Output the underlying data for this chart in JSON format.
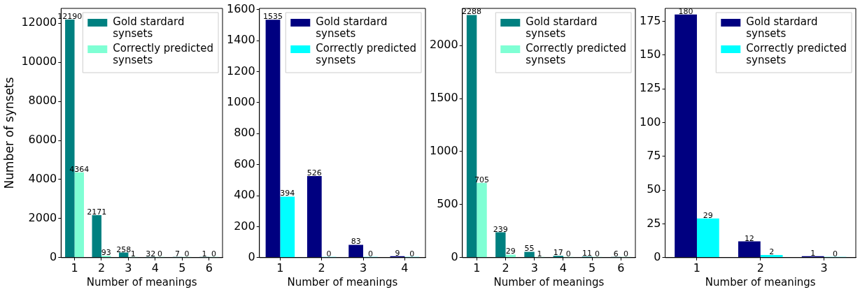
{
  "chart_data": [
    {
      "type": "bar",
      "xlabel": "Number of meanings",
      "ylabel": "Number of synsets",
      "categories": [
        "1",
        "2",
        "3",
        "4",
        "5",
        "6"
      ],
      "series": [
        {
          "name": "Gold stardard synsets",
          "color": "#008080",
          "values": [
            12190,
            2171,
            258,
            32,
            7,
            1
          ]
        },
        {
          "name": "Correctly predicted synsets",
          "color": "#7fffd4",
          "values": [
            4364,
            93,
            1,
            0,
            0,
            0
          ]
        }
      ],
      "ylim": [
        0,
        12760
      ],
      "yticks": [
        0,
        2000,
        4000,
        6000,
        8000,
        10000,
        12000
      ],
      "data_labels": true,
      "legend": "top right"
    },
    {
      "type": "bar",
      "xlabel": "Number of meanings",
      "categories": [
        "1",
        "2",
        "3",
        "4"
      ],
      "series": [
        {
          "name": "Gold stardard synsets",
          "color": "#000080",
          "values": [
            1535,
            526,
            83,
            9
          ]
        },
        {
          "name": "Correctly predicted synsets",
          "color": "#00ffff",
          "values": [
            394,
            0,
            0,
            0
          ]
        }
      ],
      "ylim": [
        0,
        1608
      ],
      "yticks": [
        0,
        200,
        400,
        600,
        800,
        1000,
        1200,
        1400,
        1600
      ],
      "data_labels": true,
      "legend": "top right"
    },
    {
      "type": "bar",
      "xlabel": "Number of meanings",
      "categories": [
        "1",
        "2",
        "3",
        "4",
        "5",
        "6"
      ],
      "series": [
        {
          "name": "Gold stardard synsets",
          "color": "#008080",
          "values": [
            2288,
            239,
            55,
            17,
            11,
            6
          ]
        },
        {
          "name": "Correctly predicted synsets",
          "color": "#7fffd4",
          "values": [
            705,
            29,
            1,
            0,
            0,
            0
          ]
        }
      ],
      "ylim": [
        0,
        2350
      ],
      "yticks": [
        0,
        500,
        1000,
        1500,
        2000
      ],
      "data_labels": true,
      "legend": "top right"
    },
    {
      "type": "bar",
      "xlabel": "Number of meanings",
      "categories": [
        "1",
        "2",
        "3"
      ],
      "series": [
        {
          "name": "Gold stardard synsets",
          "color": "#000080",
          "values": [
            180,
            12,
            1
          ]
        },
        {
          "name": "Correctly predicted synsets",
          "color": "#00ffff",
          "values": [
            29,
            2,
            0
          ]
        }
      ],
      "ylim": [
        0,
        184.5
      ],
      "yticks": [
        0,
        25,
        50,
        75,
        100,
        125,
        150,
        175
      ],
      "data_labels": true,
      "legend": "top right"
    }
  ]
}
